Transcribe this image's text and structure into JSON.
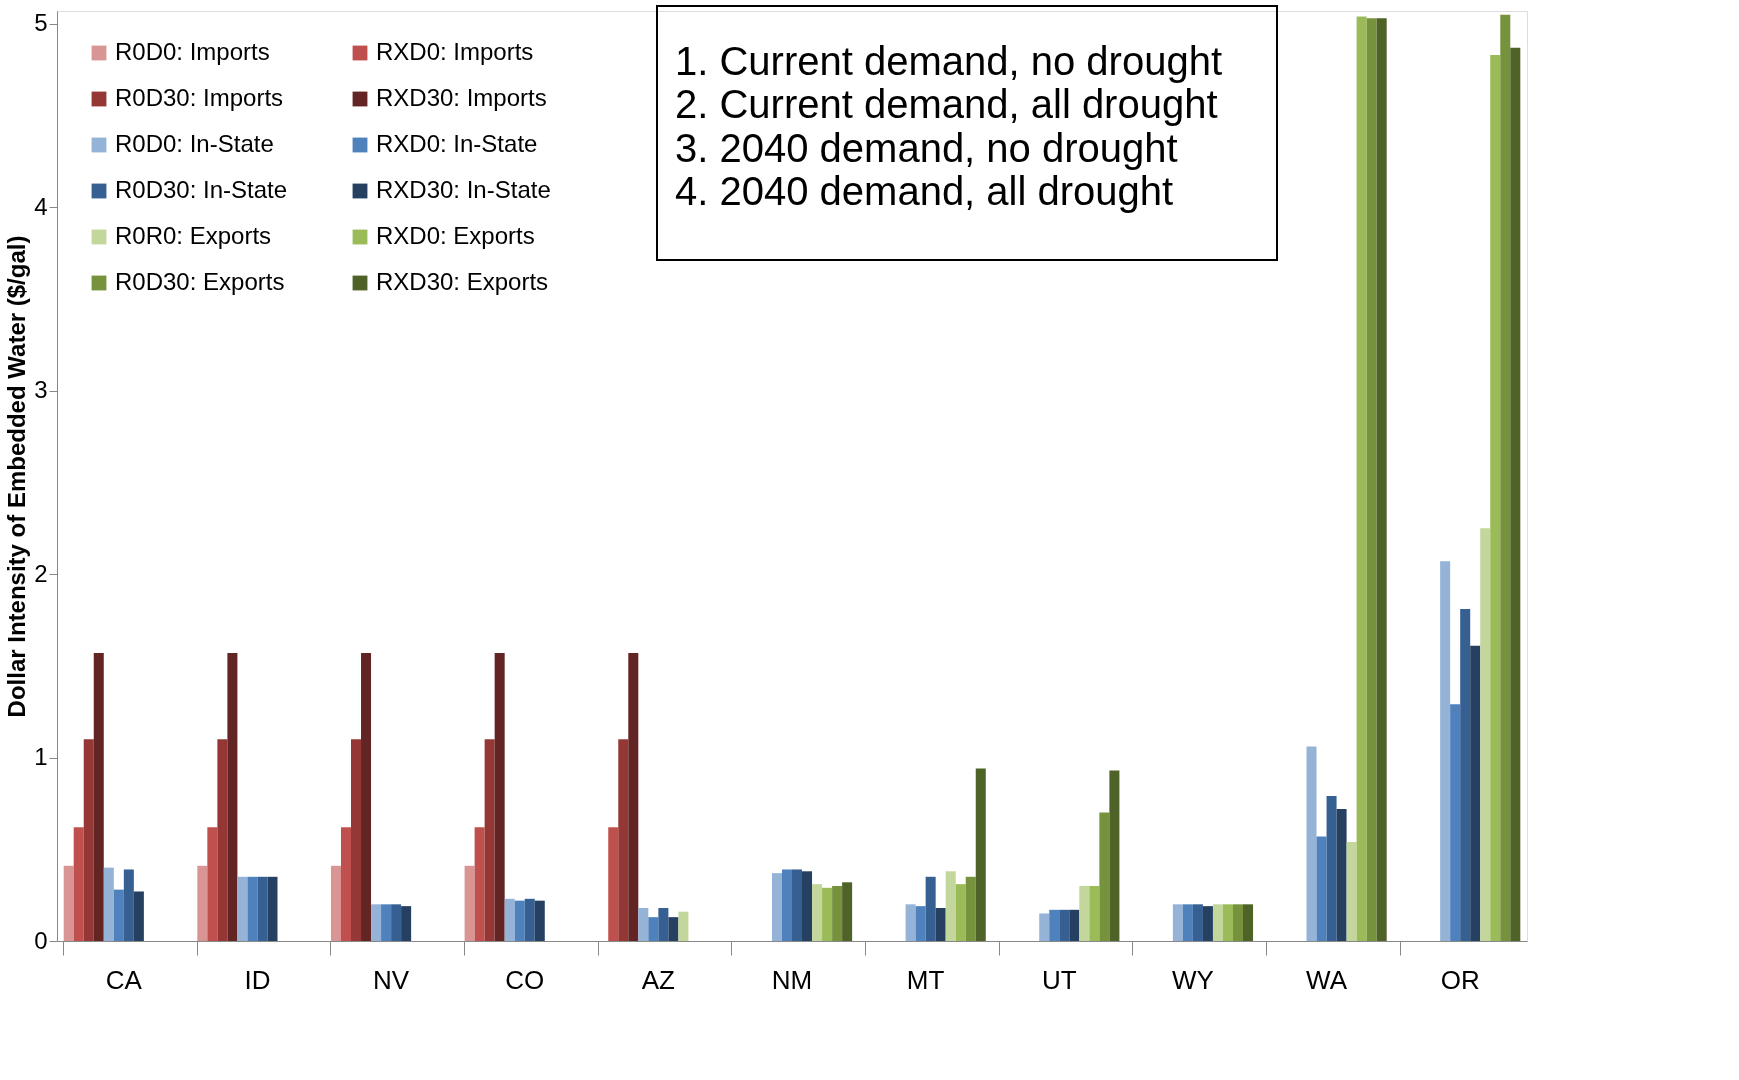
{
  "chart_data": {
    "type": "bar",
    "ylabel": "Dollar Intensity of Embedded Water ($/gal)",
    "categories": [
      "CA",
      "ID",
      "NV",
      "CO",
      "AZ",
      "NM",
      "MT",
      "UT",
      "WY",
      "WA",
      "OR"
    ],
    "ylim": [
      0,
      5.07
    ],
    "yticks": [
      0,
      1,
      2,
      3,
      4,
      5
    ],
    "grid": false,
    "legend": "top left",
    "annotations": [
      "1.   Current demand, no drought",
      "2.   Current demand, all drought",
      "3.   2040 demand, no drought",
      "4.   2040 demand, all drought"
    ],
    "series": [
      {
        "name": "R0D0: Imports",
        "color": "#d99594",
        "values": [
          0.41,
          0.41,
          0.41,
          0.41,
          null,
          null,
          null,
          null,
          null,
          null,
          null
        ]
      },
      {
        "name": "RXD0: Imports",
        "color": "#c0504d",
        "values": [
          0.62,
          0.62,
          0.62,
          0.62,
          0.62,
          null,
          null,
          null,
          null,
          null,
          null
        ]
      },
      {
        "name": "R0D30: Imports",
        "color": "#953735",
        "values": [
          1.1,
          1.1,
          1.1,
          1.1,
          1.1,
          null,
          null,
          null,
          null,
          null,
          null
        ]
      },
      {
        "name": "RXD30: Imports",
        "color": "#632523",
        "values": [
          1.57,
          1.57,
          1.57,
          1.57,
          1.57,
          null,
          null,
          null,
          null,
          null,
          null
        ]
      },
      {
        "name": "R0D0: In-State",
        "color": "#95b3d7",
        "values": [
          0.4,
          0.35,
          0.2,
          0.23,
          0.18,
          0.37,
          0.2,
          0.15,
          0.2,
          1.06,
          2.07
        ]
      },
      {
        "name": "RXD0: In-State",
        "color": "#4f81bd",
        "values": [
          0.28,
          0.35,
          0.2,
          0.22,
          0.13,
          0.39,
          0.19,
          0.17,
          0.2,
          0.57,
          1.29
        ]
      },
      {
        "name": "R0D30: In-State",
        "color": "#366092",
        "values": [
          0.39,
          0.35,
          0.2,
          0.23,
          0.18,
          0.39,
          0.35,
          0.17,
          0.2,
          0.79,
          1.81
        ]
      },
      {
        "name": "RXD30: In-State",
        "color": "#254061",
        "values": [
          0.27,
          0.35,
          0.19,
          0.22,
          0.13,
          0.38,
          0.18,
          0.17,
          0.19,
          0.72,
          1.61
        ]
      },
      {
        "name": "R0R0: Exports",
        "color": "#c3d69b",
        "values": [
          null,
          null,
          null,
          null,
          0.16,
          0.31,
          0.38,
          0.3,
          0.2,
          0.54,
          2.25
        ]
      },
      {
        "name": "RXD0: Exports",
        "color": "#9bbb59",
        "values": [
          null,
          null,
          null,
          null,
          null,
          0.29,
          0.31,
          0.3,
          0.2,
          5.04,
          4.83
        ]
      },
      {
        "name": "R0D30: Exports",
        "color": "#76923c",
        "values": [
          null,
          null,
          null,
          null,
          null,
          0.3,
          0.35,
          0.7,
          0.2,
          5.03,
          5.05
        ]
      },
      {
        "name": "RXD30: Exports",
        "color": "#4f6228",
        "values": [
          null,
          null,
          null,
          null,
          null,
          0.32,
          0.94,
          0.93,
          0.2,
          5.03,
          4.87
        ]
      }
    ]
  }
}
